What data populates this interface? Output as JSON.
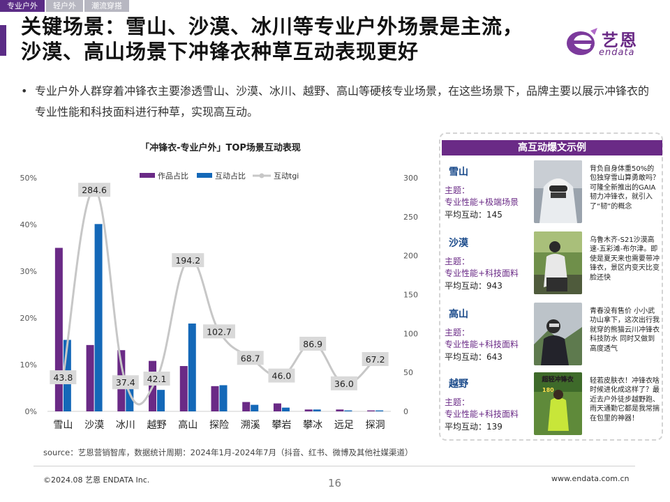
{
  "tabs": [
    "专业户外",
    "轻户外",
    "潮流穿搭"
  ],
  "title_line1": "关键场景：雪山、沙漠、冰川等专业户外场景是主流，",
  "title_line2": "沙漠、高山场景下冲锋衣种草互动表现更好",
  "logo": {
    "cn": "艺恩",
    "en": "endata"
  },
  "bullet": {
    "mark": "•",
    "text": "专业户外人群穿着冲锋衣主要渗透雪山、沙漠、冰川、越野、高山等硬核专业场景，在这些场景下，品牌主要以展示冲锋衣的专业性能和科技面料进行种草，实现高互动。"
  },
  "colors": {
    "purple": "#6a2a86",
    "blue": "#1468b8",
    "line": "#c7c7c7",
    "label_bg": "#d9d9d9"
  },
  "chart_data": {
    "type": "bar",
    "title": "「冲锋衣-专业户外」TOP场景互动表现",
    "categories": [
      "雪山",
      "沙漠",
      "冰川",
      "越野",
      "高山",
      "探险",
      "溯溪",
      "攀岩",
      "攀冰",
      "远足",
      "探洞"
    ],
    "series": [
      {
        "name": "作品占比",
        "axis": "left",
        "type": "bar",
        "values": [
          35,
          14.2,
          13.1,
          10.8,
          9.7,
          5.4,
          2.0,
          1.7,
          0.4,
          0.4,
          0.2
        ]
      },
      {
        "name": "互动占比",
        "axis": "left",
        "type": "bar",
        "values": [
          15.3,
          40.1,
          4.8,
          4.6,
          18.8,
          5.6,
          1.4,
          0.8,
          0.4,
          0.2,
          0.2
        ]
      },
      {
        "name": "互动tgi",
        "axis": "right",
        "type": "line",
        "values": [
          43.8,
          284.6,
          37.4,
          42.1,
          194.2,
          102.7,
          68.7,
          46.0,
          86.9,
          36.0,
          67.2
        ]
      }
    ],
    "data_labels": [
      "43.8",
      "284.6",
      "37.4",
      "42.1",
      "194.2",
      "102.7",
      "68.7",
      "46.0",
      "86.9",
      "36.0",
      "67.2"
    ],
    "y_left": {
      "ticks": [
        "0%",
        "10%",
        "20%",
        "30%",
        "40%",
        "50%"
      ],
      "range": [
        0,
        50
      ]
    },
    "y_right": {
      "ticks": [
        "0",
        "50",
        "100",
        "150",
        "200",
        "250",
        "300"
      ],
      "range": [
        0,
        300
      ]
    },
    "legend_position": "top"
  },
  "source": "source：艺恩营销智库，数据统计周期：2024年1月-2024年7月（抖音、红书、微博及其他社媒渠道）",
  "panel": {
    "header": "高互动爆文示例",
    "theme_label": "主题：",
    "items": [
      {
        "name": "雪山",
        "theme": "专业性能+极端场景",
        "interaction": "平均互动：145",
        "desc": "背负自身体重50%的包独穿雪山算勇敢吗？可隆全新推出的GAIA韧力冲锋衣，就引入了“韧”的概念"
      },
      {
        "name": "沙漠",
        "theme": "专业性能+科技面料",
        "interaction": "平均互动：943",
        "desc": "乌鲁木齐-S21沙漠高速-五彩滩-布尔津。即使是夏天来也需要带冲锋衣，景区内变天比变脸还快"
      },
      {
        "name": "高山",
        "theme": "专业性能+科技面料",
        "interaction": "平均互动：643",
        "desc": "青春没有售价 小小武功山拿下，这次出行我就穿的熊猫云川冲锋衣 科技防水 同时又做到高度透气"
      },
      {
        "name": "越野",
        "theme": "专业性能+科技面料",
        "interaction": "平均互动：139",
        "desc": "轻若皮肤衣！冲锋衣啥时候进化成这样了？最近去户外徒步越野跑、雨天通勤它都是我常揣在包里的神器！",
        "photo_caption": "超轻冲锋衣",
        "photo_badge": "180"
      }
    ]
  },
  "footer": {
    "left": "©2024.08 艺恩 ENDATA Inc.",
    "page": "16",
    "right": "www.endata.com.cn"
  }
}
